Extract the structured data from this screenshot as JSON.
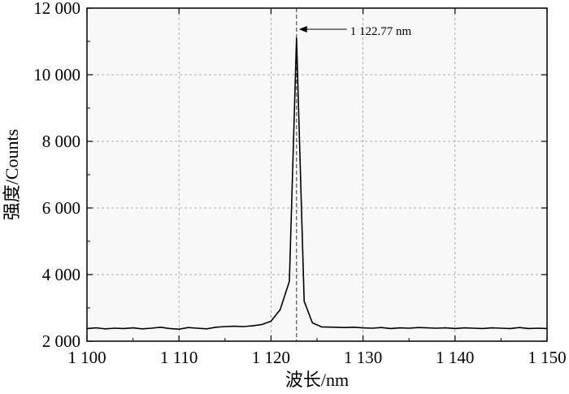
{
  "chart_data": {
    "type": "line",
    "title": "",
    "xlabel": "波长/nm",
    "ylabel": "强度/Counts",
    "xlim": [
      1100,
      1150
    ],
    "ylim": [
      2000,
      12000
    ],
    "xticks": [
      1100,
      1110,
      1120,
      1130,
      1140,
      1150
    ],
    "yticks": [
      2000,
      4000,
      6000,
      8000,
      10000,
      12000
    ],
    "xtick_labels": [
      "1 100",
      "1 110",
      "1 120",
      "1 130",
      "1 140",
      "1 150"
    ],
    "ytick_labels": [
      "2 000",
      "4 000",
      "6 000",
      "8 000",
      "10 000",
      "12 000"
    ],
    "grid": true,
    "legend": "none",
    "series": [
      {
        "x": [
          1100,
          1101,
          1102,
          1103,
          1104,
          1105,
          1106,
          1107,
          1108,
          1109,
          1110,
          1111,
          1112,
          1113,
          1114,
          1115,
          1116,
          1117,
          1118,
          1119,
          1120,
          1121,
          1122,
          1122.77,
          1123.6,
          1124.5,
          1125.5,
          1127,
          1128,
          1129,
          1130,
          1131,
          1132,
          1133,
          1134,
          1135,
          1136,
          1137,
          1138,
          1139,
          1140,
          1141,
          1142,
          1143,
          1144,
          1145,
          1146,
          1147,
          1148,
          1149,
          1150
        ],
        "values": [
          2380,
          2400,
          2370,
          2390,
          2380,
          2400,
          2370,
          2390,
          2420,
          2380,
          2360,
          2410,
          2390,
          2370,
          2420,
          2440,
          2450,
          2440,
          2460,
          2500,
          2600,
          2950,
          3800,
          11100,
          3200,
          2550,
          2430,
          2420,
          2410,
          2420,
          2400,
          2390,
          2410,
          2380,
          2400,
          2390,
          2410,
          2400,
          2390,
          2400,
          2380,
          2400,
          2390,
          2380,
          2400,
          2390,
          2380,
          2410,
          2380,
          2390,
          2380
        ],
        "color": "#000000"
      }
    ],
    "peak_x": 1122.77,
    "annotation": "1 122.77 nm"
  }
}
